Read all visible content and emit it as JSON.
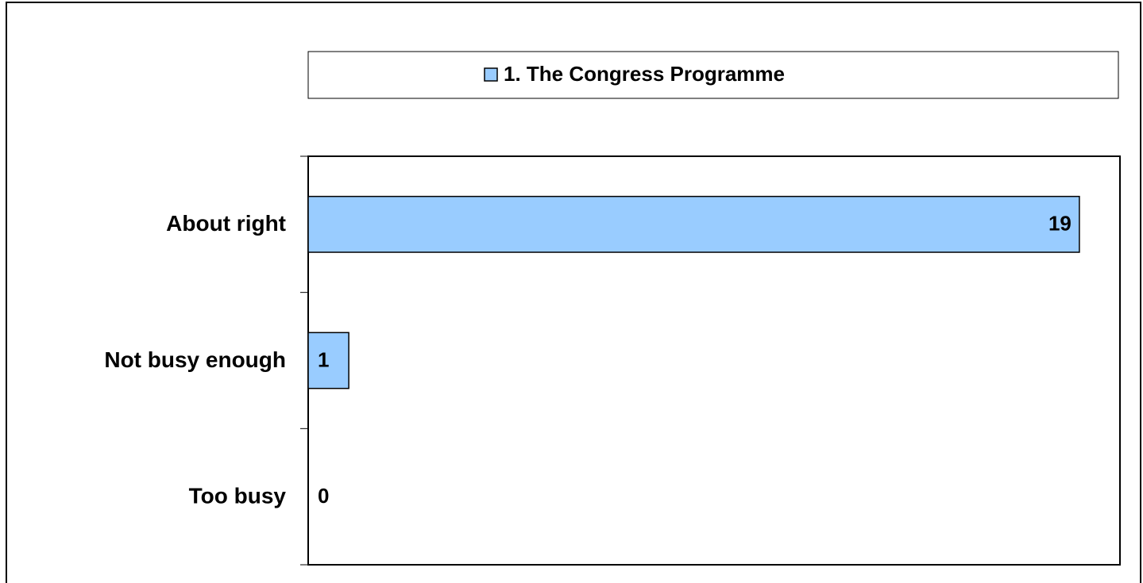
{
  "chart_data": {
    "type": "bar",
    "orientation": "horizontal",
    "categories": [
      "About right",
      "Not busy enough",
      "Too busy"
    ],
    "series": [
      {
        "name": "1. The Congress Programme",
        "color": "#99ccff",
        "values": [
          19,
          1,
          0
        ]
      }
    ],
    "xlim": [
      0,
      20
    ],
    "legend": "top"
  }
}
